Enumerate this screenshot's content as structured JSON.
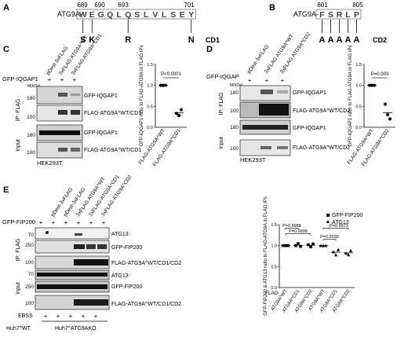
{
  "panelA": {
    "letter": "A",
    "label": "ATG9A-",
    "numbers": [
      "689",
      "690",
      "693",
      "701"
    ],
    "seq_chars": [
      "W",
      "E",
      "G",
      "Q",
      "L",
      "Q",
      "S",
      "L",
      "V",
      "L",
      "S",
      "E",
      "Y"
    ],
    "mutant_chars": [
      "S",
      "K",
      "R",
      "N"
    ],
    "mutant_name": "CD1"
  },
  "panelB": {
    "letter": "B",
    "label": "ATG9A-",
    "numbers": [
      "801",
      "805"
    ],
    "seq_chars": [
      "F",
      "S",
      "R",
      "L",
      "P"
    ],
    "mutant_chars": [
      "A",
      "A",
      "A",
      "A",
      "A"
    ],
    "mutant_name": "CD2"
  },
  "panelC": {
    "letter": "C",
    "lane_labels": [
      "pDest-3xFLAG",
      "3xFLAG ATG9A^WT",
      "3xFLAG ATG9A^CD1"
    ],
    "gfp_label": "GFP-IQGAP1",
    "gfp_marks": [
      "+",
      "+",
      "+"
    ],
    "mw_label": "M(kDa)",
    "ip_label": "IP: FLAG",
    "input_label": "Input",
    "mw_values": [
      "180",
      "100",
      "180",
      "100"
    ],
    "band_labels": [
      "GFP-IQGAP1",
      "FLAG-ATG9A^WT/CD1",
      "GFP-IQGAP1",
      "FLAG-ATG9A^WT/CD1"
    ],
    "cell_line": "HEK293T",
    "graph": {
      "ylabel": "GFP-IQGAP1 ratio to FLAG-ATG9A in FLAG IPs",
      "y_ticks": [
        "0.0",
        "0.5",
        "1.0",
        "1.5"
      ],
      "pvalue": "P<0.0001",
      "categories": [
        "FLAG-ATG9A^WT",
        "FLAG-ATG9A^CD1"
      ]
    }
  },
  "panelD": {
    "letter": "D",
    "lane_labels": [
      "pDest-3xFLAG",
      "3xFLAG ATG9A^WT",
      "3xFLAG ATG9A^CD2"
    ],
    "gfp_label": "GFP-IQGAP",
    "gfp_marks": [
      "+",
      "+",
      "+"
    ],
    "mw_label": "M(kDa)",
    "ip_label": "IP: FLAG",
    "input_label": "Input",
    "mw_values": [
      "180",
      "100",
      "180",
      "100"
    ],
    "band_labels": [
      "GFP-IQGAP1",
      "FLAG-ATG9A^WT/CD2",
      "GFP-IQGAP1",
      "FLAG-ATG9A^WT/CD2"
    ],
    "cell_line": "HEK293T",
    "graph": {
      "ylabel": "GFP-IQGAP1 ratio to FLAG-ATG9A in FLAG IPs",
      "y_ticks": [
        "0.0",
        "0.5",
        "1.0",
        "1.5"
      ],
      "pvalue": "P=0.003",
      "categories": [
        "FLAG-ATG9A^WT",
        "FLAG-ATG9A^CD2"
      ]
    }
  },
  "panelE": {
    "letter": "E",
    "lane_labels": [
      "pDest-3xFLAG",
      "pDest-3xFLAG",
      "3xFLAG ATG9A^WT",
      "3xFLAG-ATG9A^CD1",
      "3xFLAG-ATG9A^CD2"
    ],
    "gfp_label": "GFP-FIP200",
    "gfp_marks": [
      "+",
      "+",
      "+",
      "+",
      "+",
      "+"
    ],
    "mw_values": [
      "70",
      "250",
      "100",
      "70",
      "250",
      "100"
    ],
    "ip_label": "IP: FLAG",
    "input_label": "Input",
    "band_labels": [
      "ATG13",
      "GFP-FIP200",
      "FLAG-ATG9A^WT/CD1/CD2",
      "ATG13",
      "GFP-FIP200",
      "FLAG-ATG9A^WT/CD1/CD2"
    ],
    "ebss_label": "EBSS",
    "ebss_marks": [
      "+",
      "+",
      "+",
      "+",
      "+"
    ],
    "cell_line_1": "Huh7^WT",
    "cell_line_2": "Huh7^ATG9AKO",
    "graph": {
      "legend": [
        "GFP-FIP200",
        "ATG13"
      ],
      "ylabel": "GFP-FIP200 & ATG13 ratio to FLAG-ATG9A in FLAG IPs",
      "y_ticks": [
        "0.0",
        "0.5",
        "1.0",
        "1.5"
      ],
      "pvalues": [
        "P=0.8988",
        "P=0.9999",
        "P=0.2039",
        "P=0.9973"
      ],
      "x_title": "FLAG",
      "categories": [
        "ATG9A^WT",
        "ATG9A^CD1",
        "ATG9A^CD2",
        "ATG9A^WT",
        "ATG9A^CD1",
        "ATG9A^CD2"
      ]
    }
  },
  "chart_data": [
    {
      "type": "scatter",
      "panel": "C",
      "categories": [
        "FLAG-ATG9A^WT",
        "FLAG-ATG9A^CD1"
      ],
      "series": [
        {
          "values": [
            [
              1.0,
              1.0,
              1.0
            ],
            [
              0.33,
              0.28,
              0.42
            ]
          ]
        }
      ],
      "ylabel": "GFP-IQGAP1 ratio to FLAG-ATG9A in FLAG IPs",
      "ylim": [
        0,
        1.5
      ]
    },
    {
      "type": "scatter",
      "panel": "D",
      "categories": [
        "FLAG-ATG9A^WT",
        "FLAG-ATG9A^CD2"
      ],
      "series": [
        {
          "values": [
            [
              1.0,
              1.0,
              1.0
            ],
            [
              0.55,
              0.3,
              0.2
            ]
          ]
        }
      ],
      "ylabel": "GFP-IQGAP1 ratio to FLAG-ATG9A in FLAG IPs",
      "ylim": [
        0,
        1.5
      ]
    },
    {
      "type": "scatter",
      "panel": "E",
      "categories": [
        "ATG9A^WT",
        "ATG9A^CD1",
        "ATG9A^CD2",
        "ATG9A^WT",
        "ATG9A^CD1",
        "ATG9A^CD2"
      ],
      "series": [
        {
          "name": "GFP-FIP200",
          "values": [
            [
              1.0,
              1.0,
              1.0
            ],
            [
              1.0,
              1.05,
              0.98
            ],
            [
              1.02,
              0.97,
              1.04
            ],
            null,
            null,
            null
          ]
        },
        {
          "name": "ATG13",
          "values": [
            null,
            null,
            null,
            [
              1.0,
              1.0,
              1.0
            ],
            [
              0.85,
              0.78,
              0.9
            ],
            [
              0.82,
              0.78,
              0.88
            ]
          ]
        }
      ],
      "ylabel": "GFP-FIP200 & ATG13 ratio to FLAG-ATG9A in FLAG IPs",
      "ylim": [
        0,
        1.5
      ],
      "legend_position": "top-right"
    }
  ]
}
